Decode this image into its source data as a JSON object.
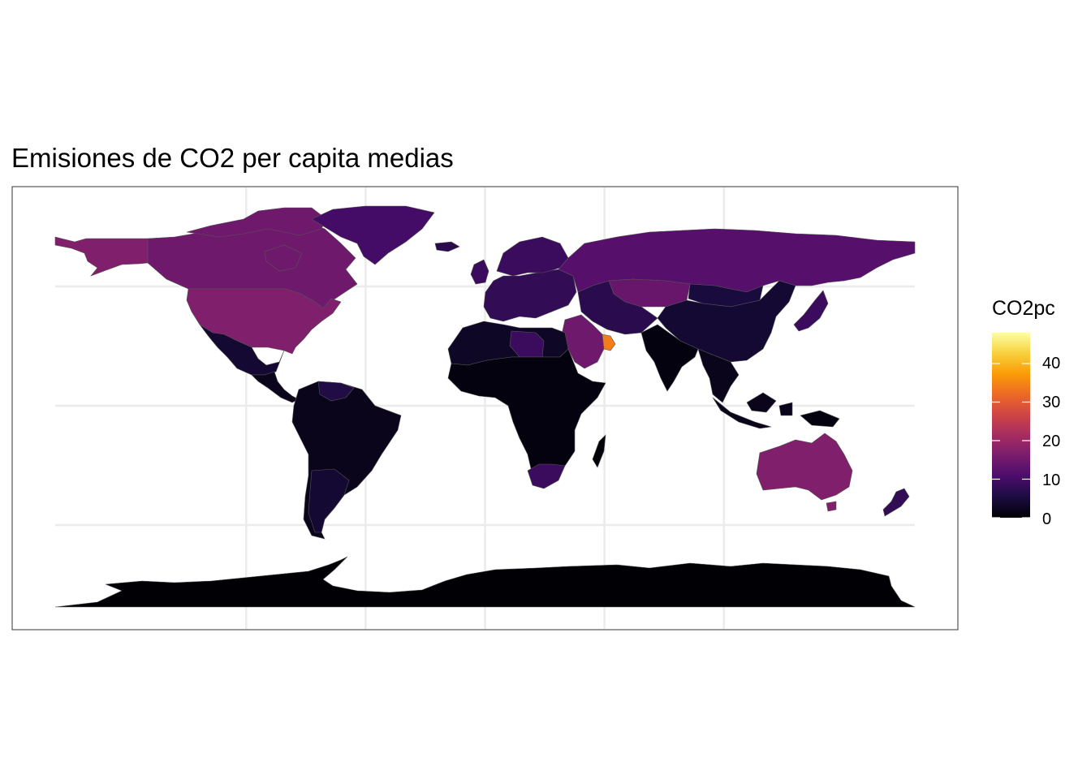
{
  "title": "Emisiones de CO2 per capita medias",
  "legend": {
    "title": "CO2pc",
    "colormap": "inferno",
    "range": [
      0,
      48
    ],
    "ticks": [
      {
        "value": 40,
        "label": "40"
      },
      {
        "value": 30,
        "label": "30"
      },
      {
        "value": 20,
        "label": "20"
      },
      {
        "value": 10,
        "label": "10"
      },
      {
        "value": 0,
        "label": "0"
      }
    ],
    "stops": [
      "#000004",
      "#1b0c41",
      "#4a0c6b",
      "#781c6d",
      "#a52c60",
      "#cf4446",
      "#ed6925",
      "#fb9b06",
      "#f7d13d",
      "#fcffa4"
    ]
  },
  "map": {
    "projection": "equirectangular",
    "graticule_lon": [
      -100,
      -50,
      0,
      50,
      100
    ],
    "graticule_lat": [
      -50,
      0,
      50
    ],
    "grid_color": "#ebebeb",
    "border_color": "#555555",
    "regions": [
      {
        "name": "Antarctica",
        "value": 0.1
      },
      {
        "name": "United States",
        "value": 17
      },
      {
        "name": "Canada",
        "value": 15
      },
      {
        "name": "Alaska",
        "value": 17
      },
      {
        "name": "Greenland",
        "value": 10
      },
      {
        "name": "Mexico",
        "value": 4
      },
      {
        "name": "Central America",
        "value": 2
      },
      {
        "name": "South America",
        "value": 2
      },
      {
        "name": "Venezuela",
        "value": 6
      },
      {
        "name": "Argentina",
        "value": 4
      },
      {
        "name": "Europe",
        "value": 8
      },
      {
        "name": "Scandinavia",
        "value": 9
      },
      {
        "name": "Russia",
        "value": 12
      },
      {
        "name": "Kazakhstan",
        "value": 14
      },
      {
        "name": "China",
        "value": 4
      },
      {
        "name": "Mongolia",
        "value": 5
      },
      {
        "name": "India",
        "value": 1
      },
      {
        "name": "Southeast Asia",
        "value": 2
      },
      {
        "name": "Indonesia",
        "value": 2
      },
      {
        "name": "Japan",
        "value": 9
      },
      {
        "name": "Africa",
        "value": 1
      },
      {
        "name": "North Africa",
        "value": 3
      },
      {
        "name": "Libya",
        "value": 9
      },
      {
        "name": "South Africa",
        "value": 9
      },
      {
        "name": "Saudi Arabia",
        "value": 15
      },
      {
        "name": "Gulf States",
        "value": 34
      },
      {
        "name": "Iran",
        "value": 7
      },
      {
        "name": "Australia",
        "value": 17
      },
      {
        "name": "New Zealand",
        "value": 8
      },
      {
        "name": "Madagascar",
        "value": 0.5
      },
      {
        "name": "Papua New Guinea",
        "value": 1
      },
      {
        "name": "UK",
        "value": 9
      },
      {
        "name": "Iceland",
        "value": 7
      }
    ]
  }
}
